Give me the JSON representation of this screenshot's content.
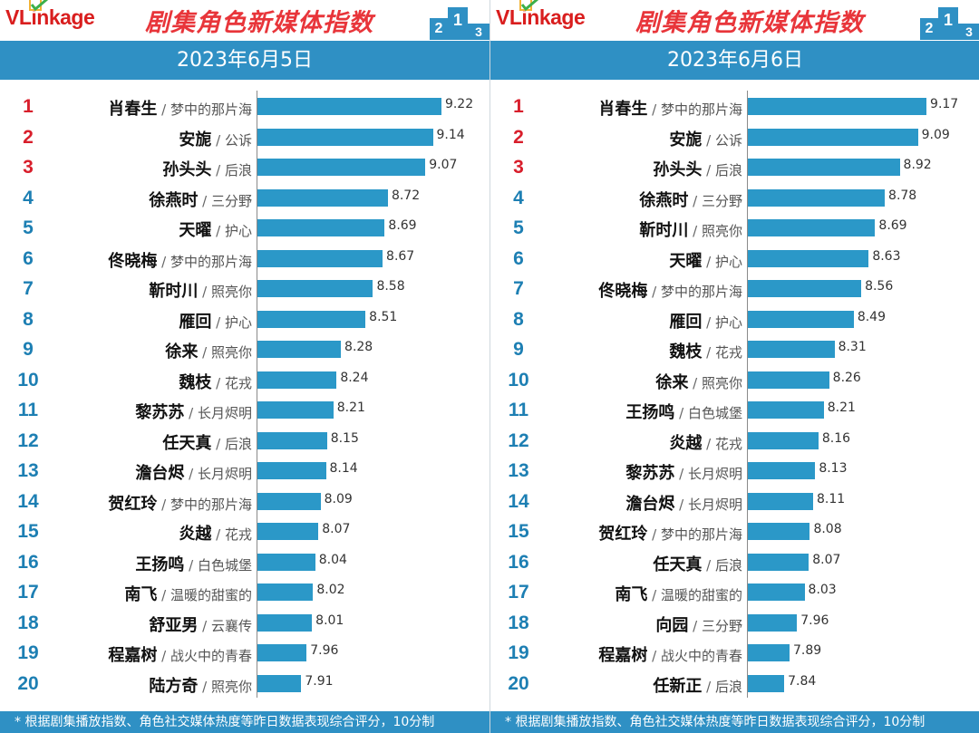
{
  "colors": {
    "blue_bar": "#2b98c8",
    "header_blue": "#2f90c4",
    "title_red": "#e8353a",
    "rank_red": "#d81e2b",
    "rank_blue": "#1d7fb3"
  },
  "logo": {
    "brand_v": "VL",
    "brand_rest": "inkage"
  },
  "footer_note": "* 根据剧集播放指数、角色社交媒体热度等昨日数据表现综合评分，10分制",
  "panels": [
    {
      "title": "剧集角色新媒体指数",
      "date": "2023年6月5日",
      "chart_data": {
        "type": "bar",
        "orientation": "horizontal",
        "xlim": [
          7.5,
          9.5
        ],
        "ranks": [
          "1",
          "2",
          "3",
          "4",
          "5",
          "6",
          "7",
          "8",
          "9",
          "10",
          "11",
          "12",
          "13",
          "14",
          "15",
          "16",
          "17",
          "18",
          "19",
          "20"
        ],
        "categories": [
          "肖春生",
          "安旎",
          "孙头头",
          "徐燕时",
          "天曜",
          "佟晓梅",
          "靳时川",
          "雁回",
          "徐来",
          "魏枝",
          "黎苏苏",
          "任天真",
          "澹台烬",
          "贺红玲",
          "炎越",
          "王扬鸣",
          "南飞",
          "舒亚男",
          "程嘉树",
          "陆方奇"
        ],
        "dramas": [
          "梦中的那片海",
          "公诉",
          "后浪",
          "三分野",
          "护心",
          "梦中的那片海",
          "照亮你",
          "护心",
          "照亮你",
          "花戎",
          "长月烬明",
          "后浪",
          "长月烬明",
          "梦中的那片海",
          "花戎",
          "白色城堡",
          "温暖的甜蜜的",
          "云襄传",
          "战火中的青春",
          "照亮你"
        ],
        "values": [
          9.22,
          9.14,
          9.07,
          8.72,
          8.69,
          8.67,
          8.58,
          8.51,
          8.28,
          8.24,
          8.21,
          8.15,
          8.14,
          8.09,
          8.07,
          8.04,
          8.02,
          8.01,
          7.96,
          7.91
        ],
        "labels": [
          "9.22",
          "9.14",
          "9.07",
          "8.72",
          "8.69",
          "8.67",
          "8.58",
          "8.51",
          "8.28",
          "8.24",
          "8.21",
          "8.15",
          "8.14",
          "8.09",
          "8.07",
          "8.04",
          "8.02",
          "8.01",
          "7.96",
          "7.91"
        ]
      }
    },
    {
      "title": "剧集角色新媒体指数",
      "date": "2023年6月6日",
      "chart_data": {
        "type": "bar",
        "orientation": "horizontal",
        "xlim": [
          7.5,
          9.5
        ],
        "ranks": [
          "1",
          "2",
          "3",
          "4",
          "5",
          "6",
          "7",
          "8",
          "9",
          "10",
          "11",
          "12",
          "13",
          "14",
          "15",
          "16",
          "17",
          "18",
          "19",
          "20"
        ],
        "categories": [
          "肖春生",
          "安旎",
          "孙头头",
          "徐燕时",
          "靳时川",
          "天曜",
          "佟晓梅",
          "雁回",
          "魏枝",
          "徐来",
          "王扬鸣",
          "炎越",
          "黎苏苏",
          "澹台烬",
          "贺红玲",
          "任天真",
          "南飞",
          "向园",
          "程嘉树",
          "任新正"
        ],
        "dramas": [
          "梦中的那片海",
          "公诉",
          "后浪",
          "三分野",
          "照亮你",
          "护心",
          "梦中的那片海",
          "护心",
          "花戎",
          "照亮你",
          "白色城堡",
          "花戎",
          "长月烬明",
          "长月烬明",
          "梦中的那片海",
          "后浪",
          "温暖的甜蜜的",
          "三分野",
          "战火中的青春",
          "后浪"
        ],
        "values": [
          9.17,
          9.09,
          8.92,
          8.78,
          8.69,
          8.63,
          8.56,
          8.49,
          8.31,
          8.26,
          8.21,
          8.16,
          8.13,
          8.11,
          8.08,
          8.07,
          8.03,
          7.96,
          7.89,
          7.84
        ],
        "labels": [
          "9.17",
          "9.09",
          "8.92",
          "8.78",
          "8.69",
          "8.63",
          "8.56",
          "8.49",
          "8.31",
          "8.26",
          "8.21",
          "8.16",
          "8.13",
          "8.11",
          "8.08",
          "8.07",
          "8.03",
          "7.96",
          "7.89",
          "7.84"
        ]
      }
    }
  ]
}
